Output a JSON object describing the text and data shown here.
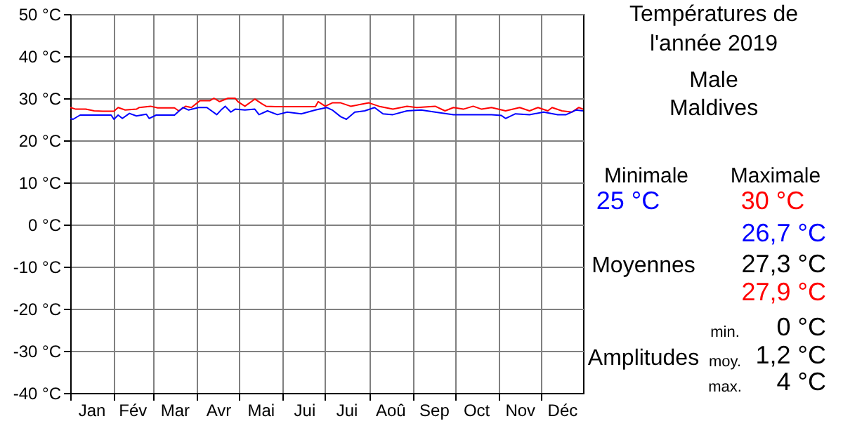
{
  "chart_data": {
    "type": "line",
    "title": "Températures de l'année 2019",
    "subtitle": "Male\nMaldives",
    "xlim": [
      "2019-01-01",
      "2019-12-31"
    ],
    "xticks": [
      {
        "value": "2019-01-01",
        "label": null
      },
      {
        "value": "2019-01-16",
        "label": "Jan"
      },
      {
        "value": "2019-02-01",
        "label": null
      },
      {
        "value": "2019-02-14",
        "label": "Fév"
      },
      {
        "value": "2019-03-01",
        "label": null
      },
      {
        "value": "2019-03-16",
        "label": "Mar"
      },
      {
        "value": "2019-04-01",
        "label": null
      },
      {
        "value": "2019-04-16",
        "label": "Avr"
      },
      {
        "value": "2019-05-01",
        "label": null
      },
      {
        "value": "2019-05-16",
        "label": "Mai"
      },
      {
        "value": "2019-06-01",
        "label": null
      },
      {
        "value": "2019-06-16",
        "label": "Jui"
      },
      {
        "value": "2019-07-01",
        "label": null
      },
      {
        "value": "2019-07-16",
        "label": "Jui"
      },
      {
        "value": "2019-08-01",
        "label": null
      },
      {
        "value": "2019-08-16",
        "label": "Aoû"
      },
      {
        "value": "2019-09-01",
        "label": null
      },
      {
        "value": "2019-09-16",
        "label": "Sep"
      },
      {
        "value": "2019-10-01",
        "label": null
      },
      {
        "value": "2019-10-16",
        "label": "Oct"
      },
      {
        "value": "2019-11-01",
        "label": null
      },
      {
        "value": "2019-11-16",
        "label": "Nov"
      },
      {
        "value": "2019-12-01",
        "label": null
      },
      {
        "value": "2019-12-16",
        "label": "Déc"
      }
    ],
    "ylim": [
      -40,
      50
    ],
    "yticks": [
      {
        "value": -40,
        "label": "-40 °C"
      },
      {
        "value": -30,
        "label": "-30 °C"
      },
      {
        "value": -20,
        "label": "-20 °C"
      },
      {
        "value": -10,
        "label": "-10 °C"
      },
      {
        "value": 0,
        "label": "0 °C"
      },
      {
        "value": 10,
        "label": "10 °C"
      },
      {
        "value": 20,
        "label": "20 °C"
      },
      {
        "value": 30,
        "label": "30 °C"
      },
      {
        "value": 40,
        "label": "40 °C"
      },
      {
        "value": 50,
        "label": "50 °C"
      }
    ],
    "grid": true,
    "legend": false,
    "annotations": [
      "Minimale",
      "25 °C",
      "Maximale",
      "30 °C",
      "Moyennes",
      "26,7 °C",
      "27,3 °C",
      "27,9 °C",
      "Amplitudes",
      "min.",
      "0 °C",
      "moy.",
      "1,2 °C",
      "max.",
      "4 °C"
    ],
    "series": [
      {
        "color": "#ff0000",
        "x": [
          "2019-01-01",
          "2019-01-05",
          "2019-01-12",
          "2019-01-18",
          "2019-01-24",
          "2019-02-01",
          "2019-02-04",
          "2019-02-09",
          "2019-02-17",
          "2019-02-19",
          "2019-02-27",
          "2019-03-04",
          "2019-03-16",
          "2019-03-19",
          "2019-03-24",
          "2019-03-28",
          "2019-04-03",
          "2019-04-10",
          "2019-04-13",
          "2019-04-17",
          "2019-04-23",
          "2019-04-28",
          "2019-04-30",
          "2019-05-05",
          "2019-05-12",
          "2019-05-17",
          "2019-05-20",
          "2019-05-27",
          "2019-06-09",
          "2019-06-24",
          "2019-06-26",
          "2019-07-01",
          "2019-07-06",
          "2019-07-12",
          "2019-07-19",
          "2019-08-01",
          "2019-08-08",
          "2019-08-18",
          "2019-08-28",
          "2019-09-04",
          "2019-09-17",
          "2019-09-24",
          "2019-09-30",
          "2019-10-07",
          "2019-10-14",
          "2019-10-20",
          "2019-10-27",
          "2019-11-06",
          "2019-11-16",
          "2019-11-23",
          "2019-11-29",
          "2019-12-06",
          "2019-12-09",
          "2019-12-16",
          "2019-12-23",
          "2019-12-28",
          "2019-12-31"
        ],
        "values": [
          27.8,
          27.4,
          27.4,
          27.0,
          26.9,
          26.9,
          27.8,
          27.2,
          27.4,
          27.8,
          28.1,
          27.7,
          27.7,
          27.0,
          28.1,
          27.8,
          29.4,
          29.4,
          30.0,
          29.2,
          30.0,
          30.0,
          29.2,
          28.1,
          29.8,
          28.7,
          28.1,
          28.0,
          28.0,
          28.0,
          29.2,
          28.1,
          28.9,
          28.9,
          28.1,
          28.9,
          28.1,
          27.4,
          28.1,
          27.8,
          28.1,
          27.0,
          27.8,
          27.4,
          28.1,
          27.4,
          27.8,
          27.0,
          27.8,
          27.0,
          27.8,
          27.0,
          27.8,
          27.0,
          26.7,
          27.8,
          27.4
        ]
      },
      {
        "color": "#0000ff",
        "x": [
          "2019-01-01",
          "2019-01-03",
          "2019-01-08",
          "2019-01-20",
          "2019-01-30",
          "2019-02-01",
          "2019-02-04",
          "2019-02-07",
          "2019-02-12",
          "2019-02-17",
          "2019-02-24",
          "2019-02-26",
          "2019-03-03",
          "2019-03-16",
          "2019-03-22",
          "2019-03-26",
          "2019-04-02",
          "2019-04-08",
          "2019-04-15",
          "2019-04-18",
          "2019-04-21",
          "2019-04-25",
          "2019-04-28",
          "2019-05-05",
          "2019-05-12",
          "2019-05-15",
          "2019-05-21",
          "2019-05-28",
          "2019-06-04",
          "2019-06-14",
          "2019-06-24",
          "2019-07-02",
          "2019-07-06",
          "2019-07-12",
          "2019-07-16",
          "2019-07-22",
          "2019-07-29",
          "2019-08-05",
          "2019-08-11",
          "2019-08-18",
          "2019-08-28",
          "2019-09-07",
          "2019-09-17",
          "2019-09-30",
          "2019-10-14",
          "2019-10-27",
          "2019-11-03",
          "2019-11-06",
          "2019-11-13",
          "2019-11-23",
          "2019-12-03",
          "2019-12-13",
          "2019-12-19",
          "2019-12-26",
          "2019-12-31"
        ],
        "values": [
          25.2,
          25.0,
          26.0,
          26.0,
          26.0,
          25.0,
          26.0,
          25.2,
          26.4,
          25.8,
          26.2,
          25.2,
          26.0,
          26.0,
          27.8,
          27.2,
          27.8,
          27.8,
          26.1,
          27.2,
          28.1,
          26.7,
          27.4,
          27.2,
          27.4,
          26.1,
          27.0,
          26.1,
          26.7,
          26.3,
          27.2,
          27.8,
          27.2,
          25.6,
          25.0,
          26.7,
          27.0,
          27.8,
          26.3,
          26.1,
          27.0,
          27.2,
          26.7,
          26.1,
          26.1,
          26.1,
          25.9,
          25.2,
          26.3,
          26.1,
          26.7,
          26.1,
          26.1,
          27.2,
          27.0
        ]
      }
    ]
  }
}
